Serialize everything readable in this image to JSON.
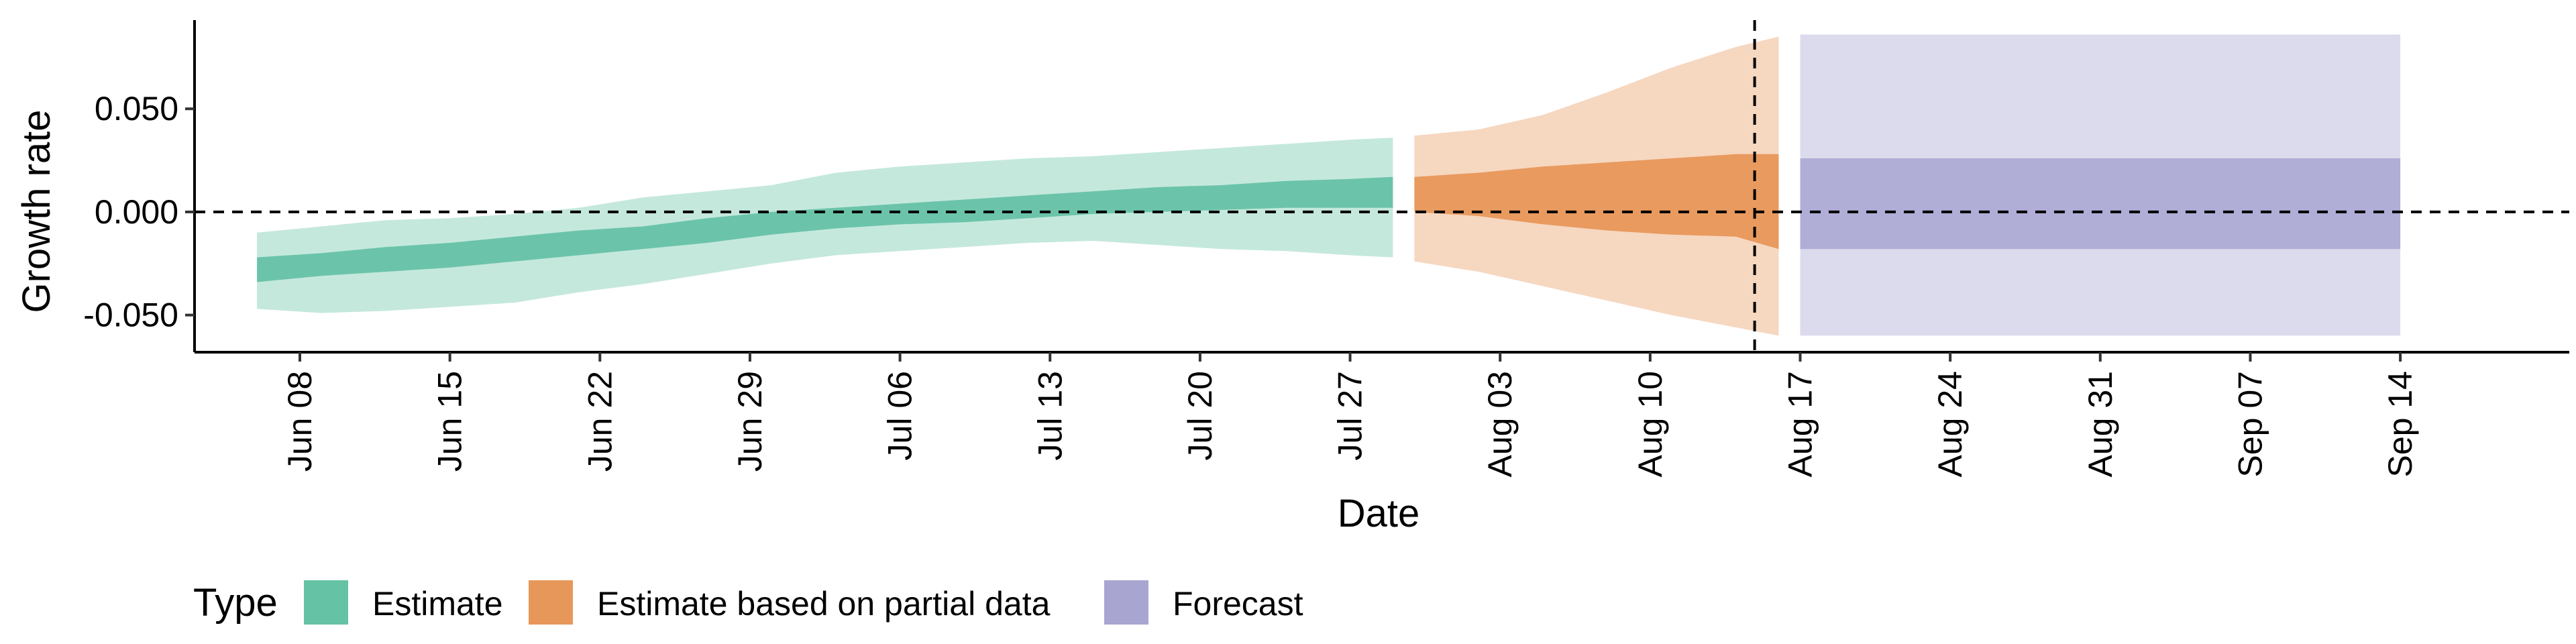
{
  "chart_data": {
    "type": "area",
    "xlabel": "Date",
    "ylabel": "Growth rate",
    "x_tick_labels": [
      "Jun 08",
      "Jun 15",
      "Jun 22",
      "Jun 29",
      "Jul 06",
      "Jul 13",
      "Jul 20",
      "Jul 27",
      "Aug 03",
      "Aug 10",
      "Aug 17",
      "Aug 24",
      "Aug 31",
      "Sep 07",
      "Sep 14"
    ],
    "y_tick_labels": [
      "-0.050",
      "0.000",
      "0.050"
    ],
    "y_ticks": [
      -0.05,
      0,
      0.05
    ],
    "ylim": [
      -0.068,
      0.093
    ],
    "x_start_day": 0,
    "x_end_day": 113,
    "reference_line_y": 0,
    "forecast_start_day": 68,
    "legend": {
      "title": "Type",
      "position": "bottom-left",
      "entries": [
        {
          "label": "Estimate",
          "color": "#66c2a5"
        },
        {
          "label": "Estimate based on partial data",
          "color": "#e8975a"
        },
        {
          "label": "Forecast",
          "color": "#a8a5d1"
        }
      ]
    },
    "grid": false,
    "series": [
      {
        "name": "Estimate",
        "color": "#66c2a5",
        "x": [
          "2020-06-06",
          "2020-06-09",
          "2020-06-12",
          "2020-06-15",
          "2020-06-18",
          "2020-06-21",
          "2020-06-24",
          "2020-06-27",
          "2020-06-30",
          "2020-07-03",
          "2020-07-06",
          "2020-07-09",
          "2020-07-12",
          "2020-07-15",
          "2020-07-18",
          "2020-07-21",
          "2020-07-24",
          "2020-07-27",
          "2020-07-29"
        ],
        "inner_lower": [
          -0.034,
          -0.031,
          -0.029,
          -0.027,
          -0.024,
          -0.021,
          -0.018,
          -0.015,
          -0.011,
          -0.008,
          -0.006,
          -0.005,
          -0.003,
          -0.001,
          0.0,
          0.001,
          0.002,
          0.002,
          0.002
        ],
        "inner_upper": [
          -0.022,
          -0.02,
          -0.017,
          -0.015,
          -0.012,
          -0.009,
          -0.007,
          -0.003,
          0.0,
          0.002,
          0.004,
          0.006,
          0.008,
          0.01,
          0.012,
          0.013,
          0.015,
          0.016,
          0.017
        ],
        "outer_lower": [
          -0.047,
          -0.049,
          -0.048,
          -0.046,
          -0.044,
          -0.039,
          -0.035,
          -0.03,
          -0.025,
          -0.021,
          -0.019,
          -0.017,
          -0.015,
          -0.014,
          -0.016,
          -0.018,
          -0.019,
          -0.021,
          -0.022
        ],
        "outer_upper": [
          -0.01,
          -0.007,
          -0.004,
          -0.003,
          -0.001,
          0.002,
          0.007,
          0.01,
          0.013,
          0.019,
          0.022,
          0.024,
          0.026,
          0.027,
          0.029,
          0.031,
          0.033,
          0.035,
          0.036
        ]
      },
      {
        "name": "Estimate based on partial data",
        "color": "#e8975a",
        "x": [
          "2020-07-30",
          "2020-08-02",
          "2020-08-05",
          "2020-08-08",
          "2020-08-11",
          "2020-08-14",
          "2020-08-16"
        ],
        "inner_lower": [
          0.0,
          -0.002,
          -0.006,
          -0.009,
          -0.011,
          -0.012,
          -0.018
        ],
        "inner_upper": [
          0.017,
          0.019,
          0.022,
          0.024,
          0.026,
          0.028,
          0.028
        ],
        "outer_lower": [
          -0.024,
          -0.029,
          -0.036,
          -0.043,
          -0.05,
          -0.056,
          -0.06
        ],
        "outer_upper": [
          0.037,
          0.04,
          0.047,
          0.058,
          0.07,
          0.08,
          0.085
        ]
      },
      {
        "name": "Forecast",
        "color": "#a8a5d1",
        "x": [
          "2020-08-17",
          "2020-09-14"
        ],
        "inner_lower": [
          -0.018,
          -0.018
        ],
        "inner_upper": [
          0.026,
          0.026
        ],
        "outer_lower": [
          -0.06,
          -0.06
        ],
        "outer_upper": [
          0.086,
          0.086
        ]
      }
    ]
  }
}
